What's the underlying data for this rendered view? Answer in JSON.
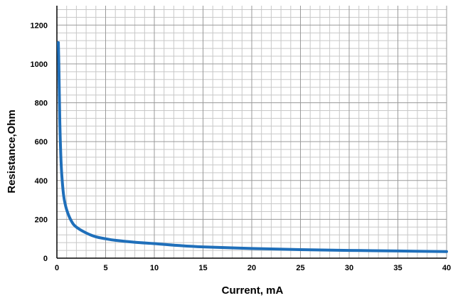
{
  "chart_data": {
    "type": "line",
    "title": "",
    "xlabel": "Current, mA",
    "ylabel": "Resistance,Ohm",
    "xlim": [
      0,
      40
    ],
    "ylim": [
      0,
      1300
    ],
    "x_ticks": [
      0,
      5,
      10,
      15,
      20,
      25,
      30,
      35,
      40
    ],
    "y_ticks": [
      0,
      200,
      400,
      600,
      800,
      1000,
      1200
    ],
    "x_tick_labels": [
      "0",
      "5",
      "10",
      "15",
      "20",
      "25",
      "30",
      "35",
      "40"
    ],
    "y_tick_labels": [
      "0",
      "200",
      "400",
      "600",
      "800",
      "1000",
      "1200"
    ],
    "grid": "major and minor",
    "legend": "none",
    "colors": {
      "series": "#1f6fba",
      "major_grid": "#9a9a9a",
      "minor_grid": "#c8c8c8",
      "axis": "#000000"
    },
    "series": [
      {
        "x": [
          0.15,
          0.2,
          0.3,
          0.4,
          0.5,
          0.7,
          1.0,
          1.5,
          2,
          3,
          4,
          5,
          6,
          8,
          10,
          12,
          15,
          20,
          25,
          30,
          35,
          40
        ],
        "y": [
          1110,
          1000,
          700,
          530,
          430,
          320,
          250,
          190,
          160,
          130,
          110,
          100,
          92,
          82,
          75,
          67,
          58,
          50,
          44,
          40,
          37,
          34
        ]
      }
    ]
  }
}
